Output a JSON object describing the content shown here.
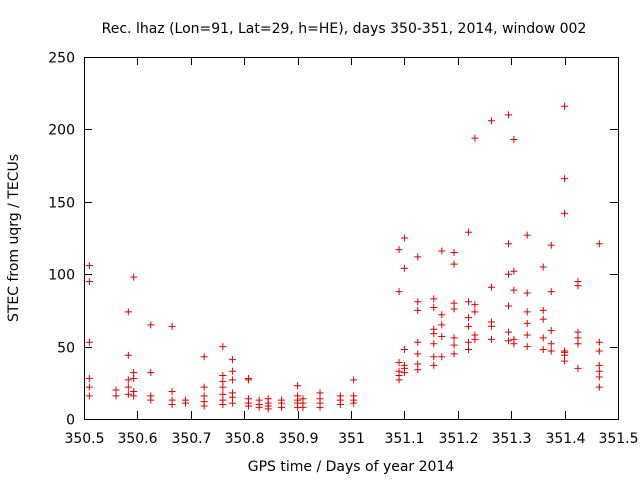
{
  "chart_data": {
    "type": "scatter",
    "title": "Rec. lhaz (Lon=91, Lat=29, h=HE), days 350-351, 2014, window 002",
    "xlabel": "GPS time / Days of year 2014",
    "ylabel": "STEC from uqrg / TECUs",
    "xlim": [
      350.5,
      351.5
    ],
    "ylim": [
      0,
      250
    ],
    "grid": false,
    "marker": "plus",
    "color": "#e00000",
    "x_ticks": [
      "350.5",
      "350.6",
      "350.7",
      "350.8",
      "350.9",
      "351",
      "351.1",
      "351.2",
      "351.3",
      "351.4",
      "351.5"
    ],
    "y_ticks": [
      "0",
      "50",
      "100",
      "150",
      "200",
      "250"
    ],
    "series": [
      {
        "name": "STEC",
        "points": [
          [
            350.51,
            106
          ],
          [
            350.51,
            95
          ],
          [
            350.51,
            53
          ],
          [
            350.51,
            28
          ],
          [
            350.51,
            22
          ],
          [
            350.51,
            16
          ],
          [
            350.56,
            20
          ],
          [
            350.56,
            16
          ],
          [
            350.583,
            74
          ],
          [
            350.583,
            44
          ],
          [
            350.583,
            27
          ],
          [
            350.583,
            22
          ],
          [
            350.583,
            17
          ],
          [
            350.593,
            98
          ],
          [
            350.593,
            32
          ],
          [
            350.593,
            28
          ],
          [
            350.593,
            19
          ],
          [
            350.593,
            16
          ],
          [
            350.625,
            65
          ],
          [
            350.625,
            32
          ],
          [
            350.625,
            16
          ],
          [
            350.625,
            13
          ],
          [
            350.665,
            64
          ],
          [
            350.665,
            19
          ],
          [
            350.665,
            13
          ],
          [
            350.665,
            10
          ],
          [
            350.69,
            13
          ],
          [
            350.69,
            11
          ],
          [
            350.725,
            43
          ],
          [
            350.725,
            22
          ],
          [
            350.725,
            16
          ],
          [
            350.725,
            12
          ],
          [
            350.725,
            9
          ],
          [
            350.76,
            50
          ],
          [
            350.76,
            30
          ],
          [
            350.76,
            26
          ],
          [
            350.76,
            22
          ],
          [
            350.76,
            17
          ],
          [
            350.76,
            13
          ],
          [
            350.76,
            10
          ],
          [
            350.778,
            41
          ],
          [
            350.778,
            33
          ],
          [
            350.778,
            27
          ],
          [
            350.778,
            18
          ],
          [
            350.778,
            15
          ],
          [
            350.778,
            11
          ],
          [
            350.808,
            28
          ],
          [
            350.808,
            27
          ],
          [
            350.808,
            14
          ],
          [
            350.808,
            11
          ],
          [
            350.808,
            9
          ],
          [
            350.828,
            13
          ],
          [
            350.828,
            10
          ],
          [
            350.828,
            8
          ],
          [
            350.845,
            14
          ],
          [
            350.845,
            11
          ],
          [
            350.845,
            9
          ],
          [
            350.845,
            7
          ],
          [
            350.87,
            13
          ],
          [
            350.87,
            11
          ],
          [
            350.87,
            8
          ],
          [
            350.9,
            23
          ],
          [
            350.9,
            16
          ],
          [
            350.9,
            13
          ],
          [
            350.9,
            11
          ],
          [
            350.9,
            8
          ],
          [
            350.91,
            14
          ],
          [
            350.91,
            11
          ],
          [
            350.91,
            8
          ],
          [
            350.942,
            18
          ],
          [
            350.942,
            14
          ],
          [
            350.942,
            11
          ],
          [
            350.942,
            8
          ],
          [
            350.98,
            16
          ],
          [
            350.98,
            13
          ],
          [
            350.98,
            10
          ],
          [
            351.005,
            27
          ],
          [
            351.005,
            16
          ],
          [
            351.005,
            13
          ],
          [
            351.005,
            11
          ],
          [
            351.09,
            117
          ],
          [
            351.09,
            88
          ],
          [
            351.09,
            39
          ],
          [
            351.09,
            33
          ],
          [
            351.09,
            30
          ],
          [
            351.09,
            27
          ],
          [
            351.1,
            125
          ],
          [
            351.1,
            104
          ],
          [
            351.1,
            48
          ],
          [
            351.1,
            37
          ],
          [
            351.1,
            35
          ],
          [
            351.1,
            32
          ],
          [
            351.125,
            112
          ],
          [
            351.125,
            81
          ],
          [
            351.125,
            75
          ],
          [
            351.125,
            53
          ],
          [
            351.125,
            45
          ],
          [
            351.125,
            38
          ],
          [
            351.125,
            34
          ],
          [
            351.155,
            83
          ],
          [
            351.155,
            77
          ],
          [
            351.155,
            62
          ],
          [
            351.155,
            59
          ],
          [
            351.155,
            52
          ],
          [
            351.155,
            43
          ],
          [
            351.155,
            37
          ],
          [
            351.17,
            116
          ],
          [
            351.17,
            72
          ],
          [
            351.17,
            65
          ],
          [
            351.17,
            57
          ],
          [
            351.17,
            43
          ],
          [
            351.193,
            115
          ],
          [
            351.193,
            107
          ],
          [
            351.193,
            80
          ],
          [
            351.193,
            76
          ],
          [
            351.193,
            56
          ],
          [
            351.193,
            51
          ],
          [
            351.193,
            45
          ],
          [
            351.22,
            129
          ],
          [
            351.22,
            81
          ],
          [
            351.22,
            70
          ],
          [
            351.22,
            64
          ],
          [
            351.22,
            53
          ],
          [
            351.22,
            48
          ],
          [
            351.232,
            194
          ],
          [
            351.232,
            79
          ],
          [
            351.232,
            74
          ],
          [
            351.232,
            58
          ],
          [
            351.232,
            55
          ],
          [
            351.263,
            206
          ],
          [
            351.263,
            91
          ],
          [
            351.263,
            67
          ],
          [
            351.263,
            64
          ],
          [
            351.263,
            55
          ],
          [
            351.295,
            210
          ],
          [
            351.295,
            121
          ],
          [
            351.295,
            100
          ],
          [
            351.295,
            78
          ],
          [
            351.295,
            60
          ],
          [
            351.295,
            54
          ],
          [
            351.305,
            193
          ],
          [
            351.305,
            102
          ],
          [
            351.305,
            89
          ],
          [
            351.305,
            55
          ],
          [
            351.305,
            52
          ],
          [
            351.33,
            127
          ],
          [
            351.33,
            87
          ],
          [
            351.33,
            74
          ],
          [
            351.33,
            66
          ],
          [
            351.33,
            58
          ],
          [
            351.33,
            50
          ],
          [
            351.36,
            105
          ],
          [
            351.36,
            75
          ],
          [
            351.36,
            69
          ],
          [
            351.36,
            56
          ],
          [
            351.36,
            48
          ],
          [
            351.375,
            120
          ],
          [
            351.375,
            88
          ],
          [
            351.375,
            61
          ],
          [
            351.375,
            52
          ],
          [
            351.375,
            47
          ],
          [
            351.4,
            216
          ],
          [
            351.4,
            166
          ],
          [
            351.4,
            142
          ],
          [
            351.4,
            47
          ],
          [
            351.4,
            46
          ],
          [
            351.4,
            44
          ],
          [
            351.4,
            40
          ],
          [
            351.425,
            95
          ],
          [
            351.425,
            92
          ],
          [
            351.425,
            60
          ],
          [
            351.425,
            56
          ],
          [
            351.425,
            52
          ],
          [
            351.425,
            35
          ],
          [
            351.465,
            121
          ],
          [
            351.465,
            53
          ],
          [
            351.465,
            47
          ],
          [
            351.465,
            37
          ],
          [
            351.465,
            33
          ],
          [
            351.465,
            29
          ],
          [
            351.465,
            22
          ]
        ]
      }
    ]
  }
}
